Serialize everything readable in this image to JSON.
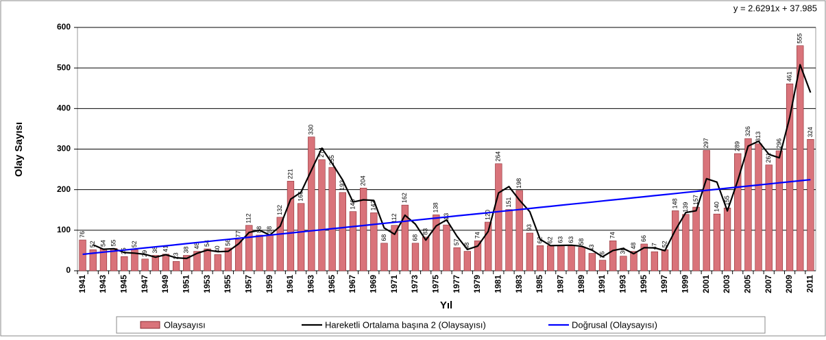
{
  "chart_data": {
    "type": "bar",
    "annotation": "y = 2.6291x + 37.985",
    "ylabel": "Olay Sayısı",
    "xlabel": "Yıl",
    "categories": [
      "1941",
      null,
      "1943",
      null,
      "1945",
      null,
      "1947",
      null,
      "1949",
      null,
      "1951",
      null,
      "1953",
      null,
      "1955",
      null,
      "1957",
      null,
      "1959",
      null,
      "1961",
      null,
      "1963",
      null,
      "1965",
      null,
      "1967",
      null,
      "1969",
      null,
      "1971",
      null,
      "1973",
      null,
      "1975",
      null,
      "1977",
      null,
      "1979",
      null,
      "1981",
      null,
      "1983",
      null,
      "1985",
      null,
      "1987",
      null,
      "1989",
      null,
      "1991",
      null,
      "1993",
      null,
      "1995",
      null,
      "1997",
      null,
      "1999",
      null,
      "2001",
      null,
      "2003",
      null,
      "2005",
      null,
      "2007",
      null,
      "2009",
      null,
      "2011"
    ],
    "series": [
      {
        "name": "Olaysayısı",
        "type": "bar",
        "color": "#d9737a",
        "values": [
          76,
          52,
          54,
          55,
          35,
          52,
          29,
          38,
          41,
          23,
          38,
          48,
          54,
          40,
          56,
          77,
          112,
          88,
          88,
          132,
          221,
          166,
          330,
          274,
          255,
          193,
          146,
          204,
          143,
          68,
          112,
          162,
          68,
          83,
          138,
          113,
          57,
          48,
          74,
          120,
          264,
          151,
          198,
          93,
          62,
          62,
          63,
          63,
          58,
          43,
          26,
          74,
          36,
          48,
          66,
          47,
          52,
          148,
          139,
          157,
          297,
          140,
          155,
          289,
          326,
          313,
          261,
          296,
          461,
          555,
          324
        ]
      },
      {
        "name": "Hareketli Ortalama başına 2  (Olaysayısı)",
        "type": "line",
        "color": "#000000",
        "values": [
          null,
          64,
          53,
          54.5,
          45,
          43.5,
          40.5,
          33.5,
          39.5,
          32,
          30.5,
          43,
          51,
          47,
          48,
          66.5,
          94.5,
          100,
          88,
          110,
          176.5,
          193.5,
          248,
          302,
          264.5,
          224,
          169.5,
          175,
          173.5,
          105.5,
          90,
          137,
          115,
          75.5,
          110.5,
          125.5,
          85,
          52.5,
          61,
          97,
          192,
          207.5,
          174.5,
          145.5,
          77.5,
          62,
          62.5,
          63,
          60.5,
          50.5,
          34.5,
          50,
          55,
          42,
          57,
          56.5,
          49.5,
          100,
          143.5,
          148,
          227,
          218.5,
          147.5,
          222,
          307.5,
          319.5,
          287,
          278.5,
          378.5,
          508,
          439.5
        ]
      },
      {
        "name": "Doğrusal (Olaysayısı)",
        "type": "line",
        "color": "#0000ff",
        "values": [
          40.6,
          43.2,
          45.9,
          48.5,
          51.1,
          53.8,
          56.4,
          59.0,
          61.6,
          64.3,
          66.9,
          69.5,
          72.2,
          74.8,
          77.4,
          80.1,
          82.7,
          85.3,
          87.9,
          90.6,
          93.2,
          95.8,
          98.5,
          101.1,
          103.7,
          106.3,
          109.0,
          111.6,
          114.2,
          116.9,
          119.5,
          122.1,
          124.7,
          127.4,
          130.0,
          132.6,
          135.3,
          137.9,
          140.5,
          143.1,
          145.8,
          148.4,
          151.0,
          153.7,
          156.3,
          158.9,
          161.6,
          164.2,
          166.8,
          169.4,
          172.1,
          174.7,
          177.3,
          180.0,
          182.6,
          185.2,
          187.8,
          190.5,
          193.1,
          195.7,
          198.4,
          201.0,
          203.6,
          206.2,
          208.9,
          211.5,
          214.1,
          216.8,
          219.4,
          222.0,
          224.7
        ]
      }
    ],
    "ylim": [
      0,
      600
    ],
    "yticks": [
      0,
      100,
      200,
      300,
      400,
      500,
      600
    ],
    "grid": true,
    "legend": "bottom"
  }
}
